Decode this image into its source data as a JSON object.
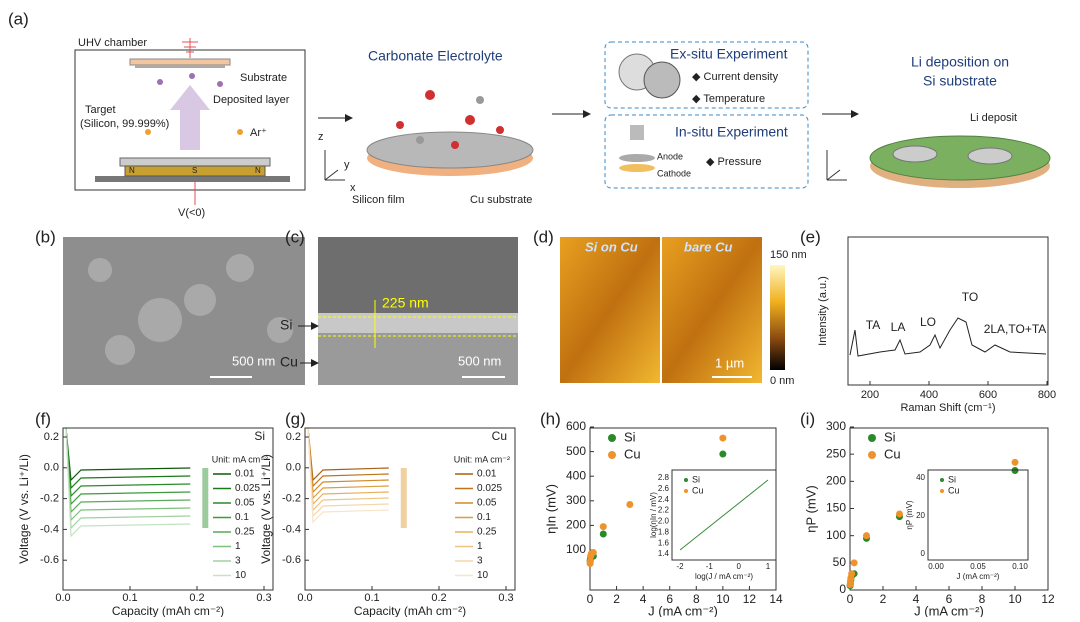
{
  "panel_a": {
    "label": "(a)",
    "uhv": "UHV chamber",
    "substrate": "Substrate",
    "deposited": "Deposited layer",
    "target": "Target",
    "target_detail": "(Silicon, 99.999%)",
    "ar": "Ar⁺",
    "voltage": "V(<0)",
    "magnet_n1": "N",
    "magnet_s": "S",
    "magnet_n2": "N",
    "electrolyte": "Carbonate Electrolyte",
    "silicon_film": "Silicon film",
    "cu_substrate": "Cu substrate",
    "exsitu": "Ex-situ Experiment",
    "current_density": "Current density",
    "temperature": "Temperature",
    "insitu": "In-situ Experiment",
    "anode": "Anode",
    "cathode": "Cathode",
    "pressure": "Pressure",
    "li_title": [
      "Li deposition on",
      "Si substrate"
    ],
    "li_deposit": "Li deposit",
    "axis_z": "z",
    "axis_y": "y",
    "axis_x": "x"
  },
  "panel_b": {
    "label": "(b)",
    "scale": "500 nm"
  },
  "panel_c": {
    "label": "(c)",
    "thickness": "225 nm",
    "si": "Si",
    "cu": "Cu",
    "scale": "500 nm"
  },
  "panel_d": {
    "label": "(d)",
    "left": "Si on Cu",
    "right": "bare Cu",
    "scale": "1 µm",
    "colorbar_max": "150 nm",
    "colorbar_min": "0 nm"
  },
  "panel_e": {
    "label": "(e)",
    "ylabel": "Intensity (a.u.)",
    "xlabel": "Raman Shift (cm⁻¹)",
    "xticks": [
      200,
      400,
      600,
      800
    ],
    "peaks": [
      "TA",
      "LA",
      "LO",
      "TO",
      "2LA,TO+TA"
    ]
  },
  "panel_f": {
    "label": "(f)",
    "material": "Si",
    "ylabel": "Voltage (V vs. Li⁺/Li)",
    "xlabel": "Capacity (mAh cm⁻²)",
    "yticks": [
      "0.2",
      "0.0",
      "-0.2",
      "-0.4",
      "-0.6"
    ],
    "xticks": [
      "0.0",
      "0.1",
      "0.2",
      "0.3"
    ],
    "unit": "Unit: mA cm⁻²",
    "legend": [
      "0.01",
      "0.025",
      "0.05",
      "0.1",
      "0.25",
      "1",
      "3",
      "10"
    ]
  },
  "panel_g": {
    "label": "(g)",
    "material": "Cu",
    "ylabel": "Voltage (V vs. Li⁺/Li)",
    "xlabel": "Capacity (mAh cm⁻²)",
    "yticks": [
      "0.2",
      "0.0",
      "-0.2",
      "-0.4",
      "-0.6"
    ],
    "xticks": [
      "0.0",
      "0.1",
      "0.2",
      "0.3"
    ],
    "unit": "Unit: mA cm⁻²",
    "legend": [
      "0.01",
      "0.025",
      "0.05",
      "0.1",
      "0.25",
      "1",
      "3",
      "10"
    ]
  },
  "panel_h": {
    "label": "(h)",
    "ylabel": "ηIn (mV)",
    "xlabel": "J (mA cm⁻²)",
    "yticks": [
      100,
      200,
      300,
      400,
      500,
      600
    ],
    "xticks": [
      0,
      2,
      4,
      6,
      8,
      10,
      12,
      14
    ],
    "series": [
      {
        "name": "Si",
        "color": "#2a8a2a",
        "x": [
          0.01,
          0.025,
          0.05,
          0.1,
          0.25,
          1,
          10
        ],
        "y": [
          55,
          62,
          68,
          72,
          75,
          165,
          490
        ]
      },
      {
        "name": "Cu",
        "color": "#f0922c",
        "x": [
          0.01,
          0.025,
          0.05,
          0.1,
          0.25,
          1,
          3,
          10
        ],
        "y": [
          45,
          55,
          75,
          85,
          90,
          195,
          285,
          555
        ]
      }
    ],
    "inset": {
      "ylabel": "log(ηIn / mV)",
      "xlabel": "log(J / mA cm⁻²)",
      "yticks": [
        "2.8",
        "2.6",
        "2.4",
        "2.2",
        "2.0",
        "1.8",
        "1.6",
        "1.4"
      ],
      "xticks": [
        "-2",
        "-1",
        "0",
        "1"
      ],
      "legend": [
        "Si",
        "Cu"
      ]
    }
  },
  "panel_i": {
    "label": "(i)",
    "ylabel": "ηP (mV)",
    "xlabel": "J (mA cm⁻²)",
    "yticks": [
      0,
      50,
      100,
      150,
      200,
      250,
      300
    ],
    "xticks": [
      0,
      2,
      4,
      6,
      8,
      10,
      12
    ],
    "series": [
      {
        "name": "Si",
        "color": "#2a8a2a",
        "x": [
          0.01,
          0.025,
          0.05,
          0.1,
          0.25,
          1,
          3,
          10
        ],
        "y": [
          8,
          12,
          18,
          25,
          30,
          95,
          135,
          220
        ]
      },
      {
        "name": "Cu",
        "color": "#f0922c",
        "x": [
          0.01,
          0.025,
          0.05,
          0.1,
          0.25,
          1,
          3,
          10
        ],
        "y": [
          10,
          15,
          22,
          30,
          50,
          100,
          140,
          235
        ]
      }
    ],
    "inset": {
      "ylabel": "ηP (mV)",
      "xlabel": "J (mA cm⁻²)",
      "yticks": [
        "40",
        "20",
        "0"
      ],
      "xticks": [
        "0.00",
        "0.05",
        "0.10"
      ],
      "legend": [
        "Si",
        "Cu"
      ]
    }
  }
}
